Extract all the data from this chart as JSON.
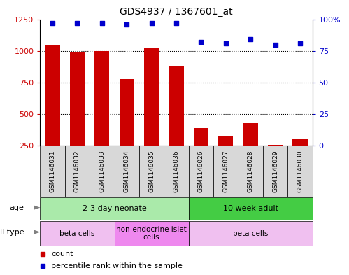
{
  "title": "GDS4937 / 1367601_at",
  "samples": [
    "GSM1146031",
    "GSM1146032",
    "GSM1146033",
    "GSM1146034",
    "GSM1146035",
    "GSM1146036",
    "GSM1146026",
    "GSM1146027",
    "GSM1146028",
    "GSM1146029",
    "GSM1146030"
  ],
  "counts": [
    1045,
    990,
    998,
    778,
    1020,
    875,
    390,
    325,
    430,
    258,
    305
  ],
  "percentile": [
    97,
    97,
    97,
    96,
    97,
    97,
    82,
    81,
    84,
    80,
    81
  ],
  "ylim_left": [
    250,
    1250
  ],
  "ylim_right": [
    0,
    100
  ],
  "yticks_left": [
    250,
    500,
    750,
    1000,
    1250
  ],
  "yticks_right": [
    0,
    25,
    50,
    75,
    100
  ],
  "bar_color": "#cc0000",
  "dot_color": "#0000cc",
  "bg_color": "#ffffff",
  "plot_bg": "#ffffff",
  "xticklabel_bg": "#d8d8d8",
  "grid_color": "#000000",
  "age_groups": [
    {
      "label": "2-3 day neonate",
      "start": 0,
      "end": 6,
      "color": "#aaeaaa"
    },
    {
      "label": "10 week adult",
      "start": 6,
      "end": 11,
      "color": "#44cc44"
    }
  ],
  "cell_type_groups": [
    {
      "label": "beta cells",
      "start": 0,
      "end": 3,
      "color": "#f0c0f0"
    },
    {
      "label": "non-endocrine islet\ncells",
      "start": 3,
      "end": 6,
      "color": "#ee88ee"
    },
    {
      "label": "beta cells",
      "start": 6,
      "end": 11,
      "color": "#f0c0f0"
    }
  ],
  "legend_count_label": "count",
  "legend_pct_label": "percentile rank within the sample",
  "ylabel_left_color": "#cc0000",
  "ylabel_right_color": "#0000cc",
  "age_label": "age",
  "cell_type_label": "cell type",
  "arrow_char": "►"
}
